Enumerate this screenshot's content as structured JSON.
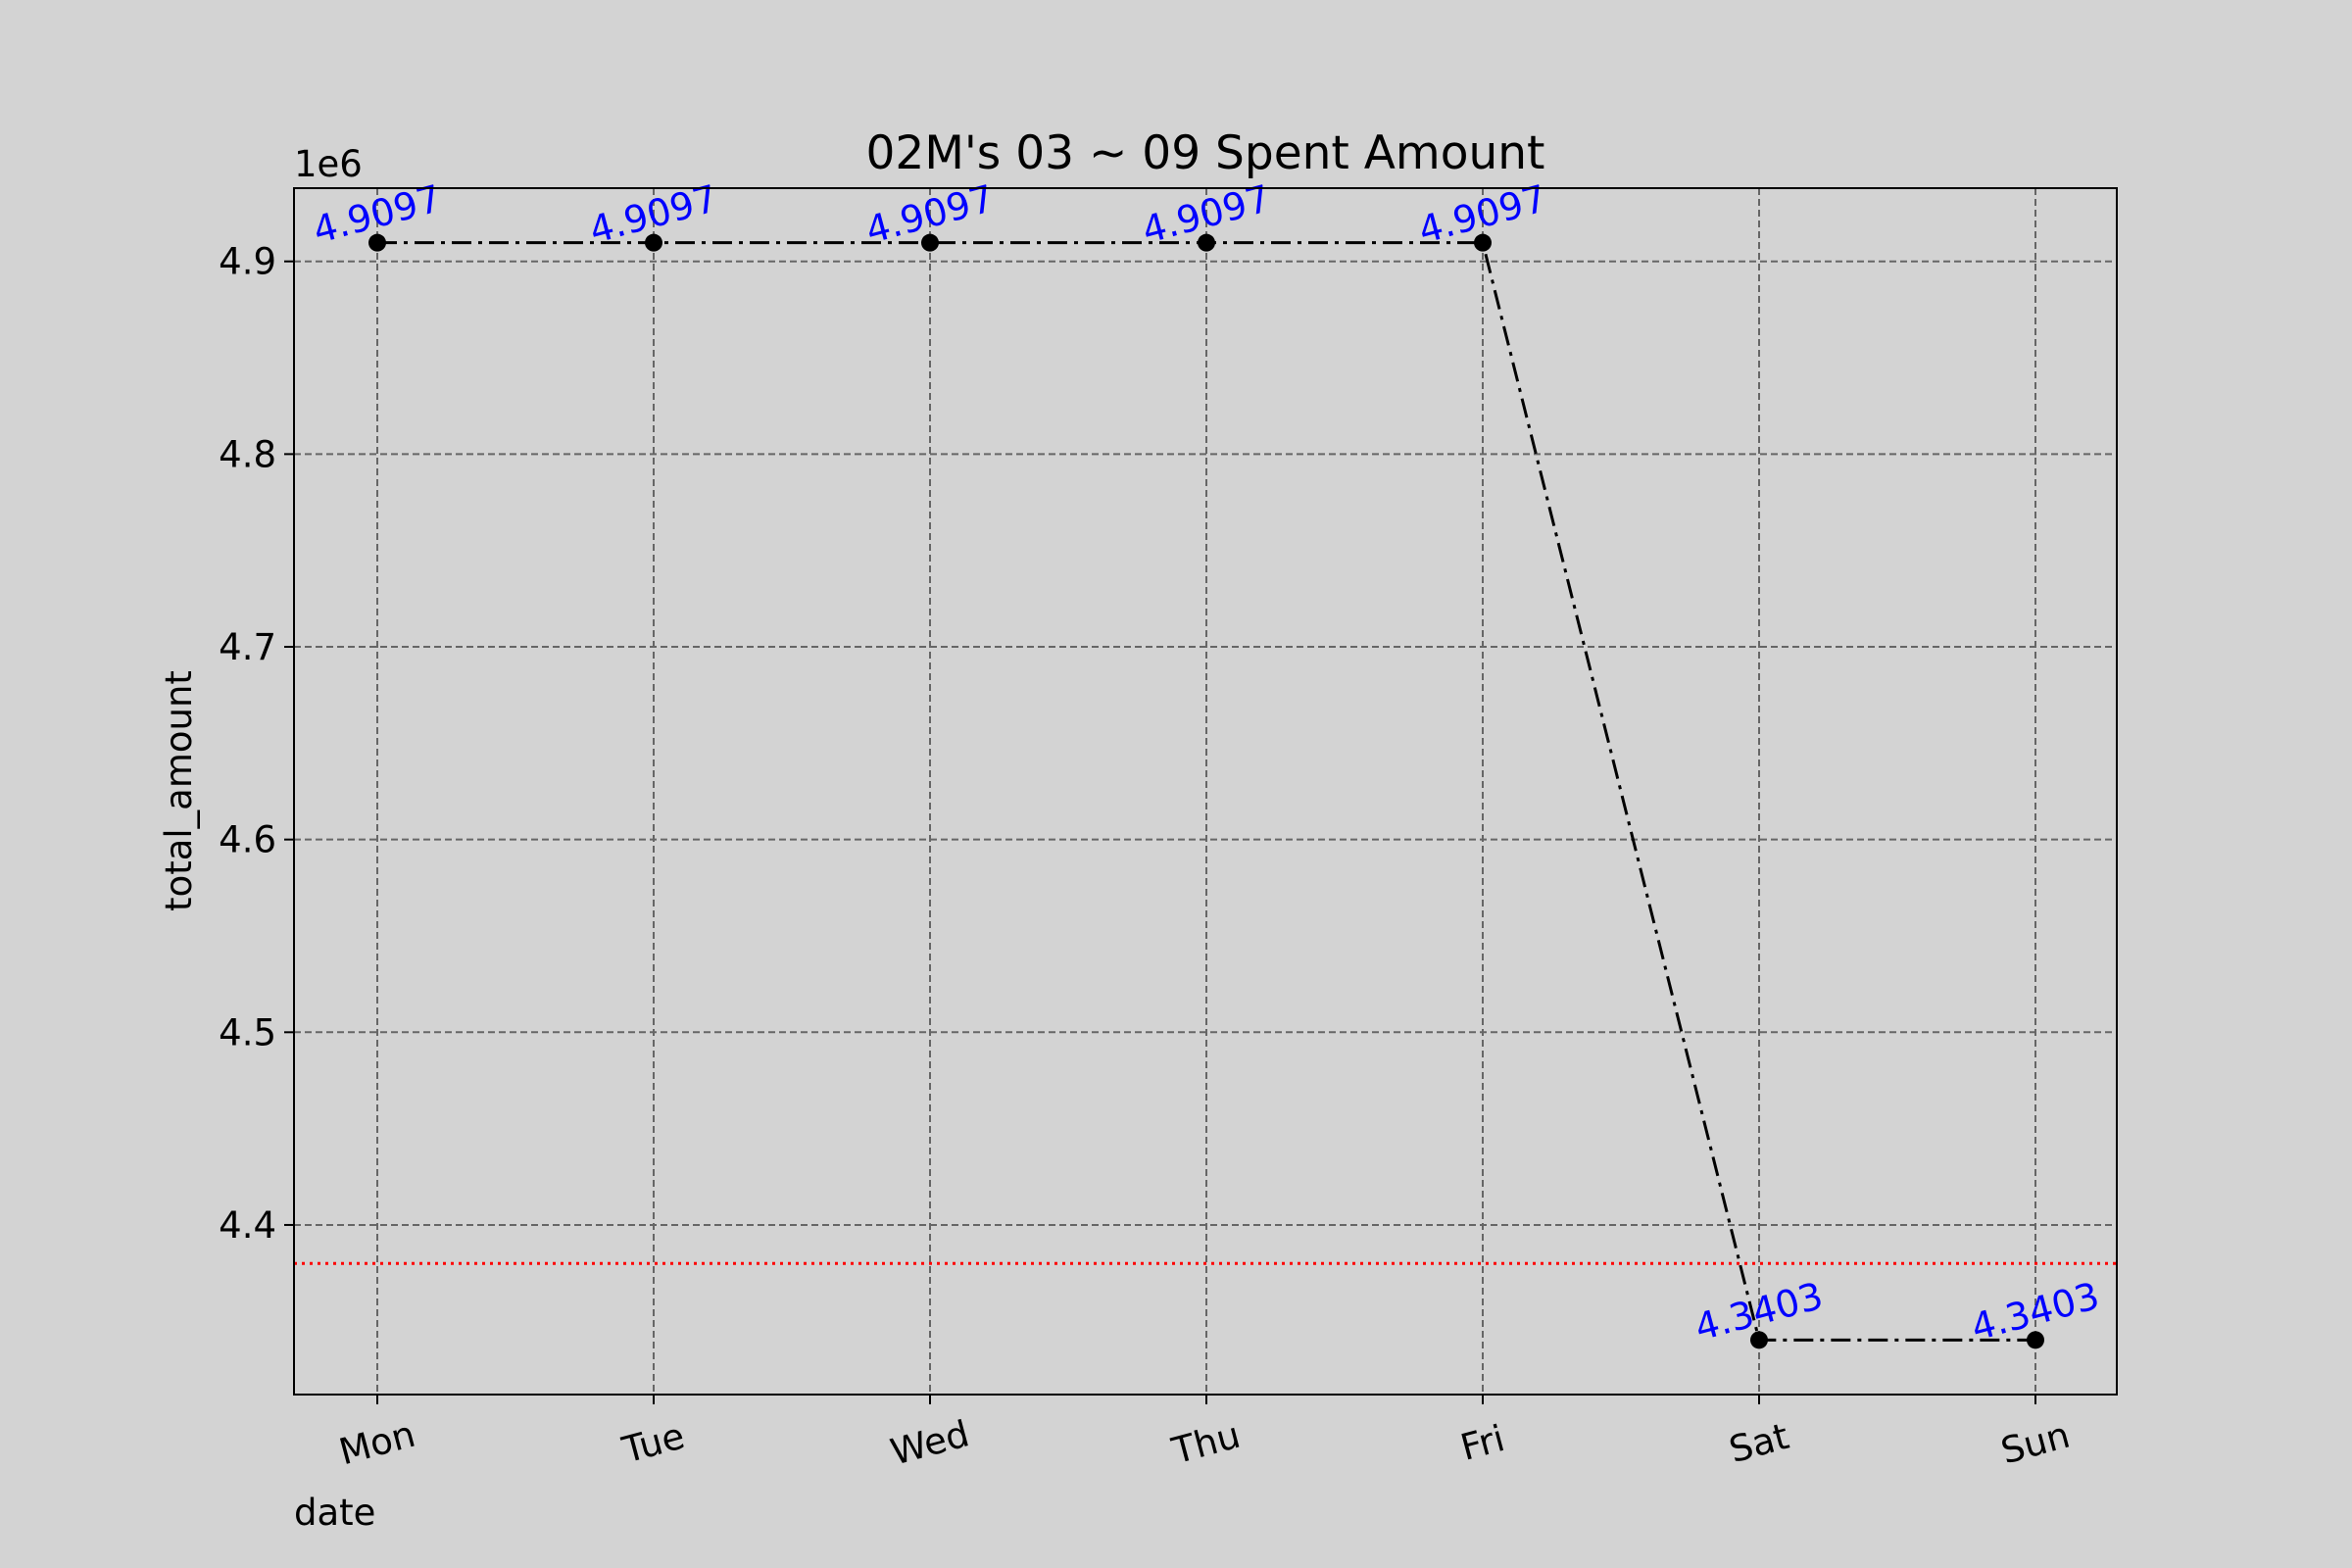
{
  "chart_data": {
    "type": "line",
    "title": "02M's 03 ~ 09 Spent Amount",
    "xlabel": "date",
    "ylabel": "total_amount",
    "y_offset_text": "1e6",
    "categories": [
      "Mon",
      "Tue",
      "Wed",
      "Thu",
      "Fri",
      "Sat",
      "Sun"
    ],
    "values": [
      4909700,
      4909700,
      4909700,
      4909700,
      4909700,
      4340300,
      4340300
    ],
    "data_labels": [
      "4.9097",
      "4.9097",
      "4.9097",
      "4.9097",
      "4.9097",
      "4.3403",
      "4.3403"
    ],
    "ylim": [
      4312000,
      4938000
    ],
    "yticks": [
      4400000,
      4500000,
      4600000,
      4700000,
      4800000,
      4900000
    ],
    "ytick_labels": [
      "4.4",
      "4.5",
      "4.6",
      "4.7",
      "4.8",
      "4.9"
    ],
    "reference_line": {
      "value": 4380000,
      "color": "#ff0000",
      "style": "dotted"
    },
    "grid": true,
    "line_style": "dash-dot",
    "colors": {
      "line": "#000000",
      "marker": "#000000",
      "data_label": "#0000ff",
      "grid": "#666666",
      "background": "#d3d3d3"
    }
  }
}
